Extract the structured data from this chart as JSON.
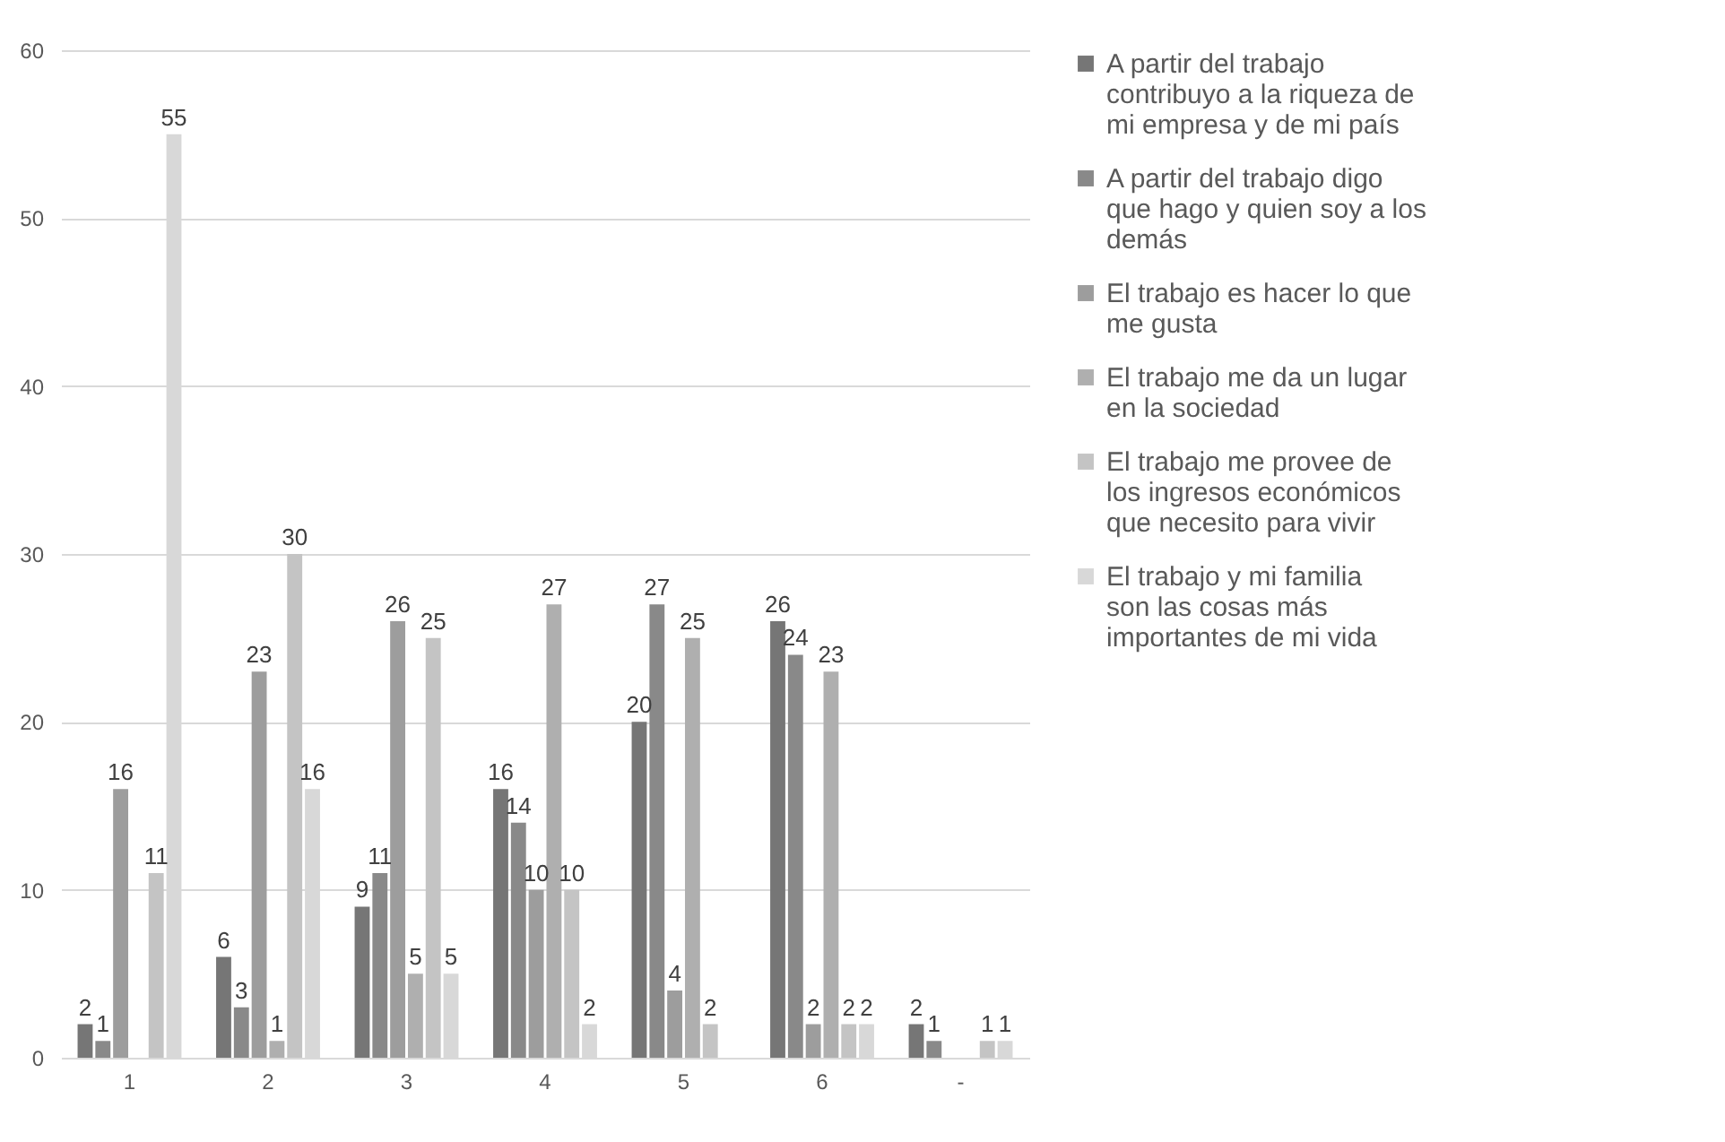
{
  "chart_data": {
    "type": "bar",
    "categories": [
      "1",
      "2",
      "3",
      "4",
      "5",
      "6",
      "-"
    ],
    "series": [
      {
        "name": "A partir del trabajo contribuyo a la riqueza de mi empresa y de mi país",
        "color": "#767676",
        "values": [
          2,
          6,
          9,
          16,
          20,
          26,
          2
        ]
      },
      {
        "name": "A partir del trabajo digo que hago y quien soy a los demás",
        "color": "#898989",
        "values": [
          1,
          3,
          11,
          14,
          27,
          24,
          1
        ]
      },
      {
        "name": "El trabajo es hacer lo que me gusta",
        "color": "#9d9d9d",
        "values": [
          16,
          23,
          26,
          10,
          4,
          2,
          null
        ]
      },
      {
        "name": "El trabajo me da un lugar en la sociedad",
        "color": "#afafaf",
        "values": [
          null,
          1,
          5,
          27,
          25,
          23,
          null
        ]
      },
      {
        "name": "El trabajo me provee de los ingresos económicos que necesito para vivir",
        "color": "#c4c4c4",
        "values": [
          11,
          30,
          25,
          10,
          2,
          2,
          1
        ]
      },
      {
        "name": "El trabajo y mi familia son las cosas más importantes de mi vida",
        "color": "#d8d8d8",
        "values": [
          55,
          16,
          5,
          2,
          null,
          2,
          1
        ]
      }
    ],
    "ylim": [
      0,
      60
    ],
    "yticks": [
      0,
      10,
      20,
      30,
      40,
      50,
      60
    ],
    "grid": "y",
    "legend": "right",
    "data_labels": true
  }
}
